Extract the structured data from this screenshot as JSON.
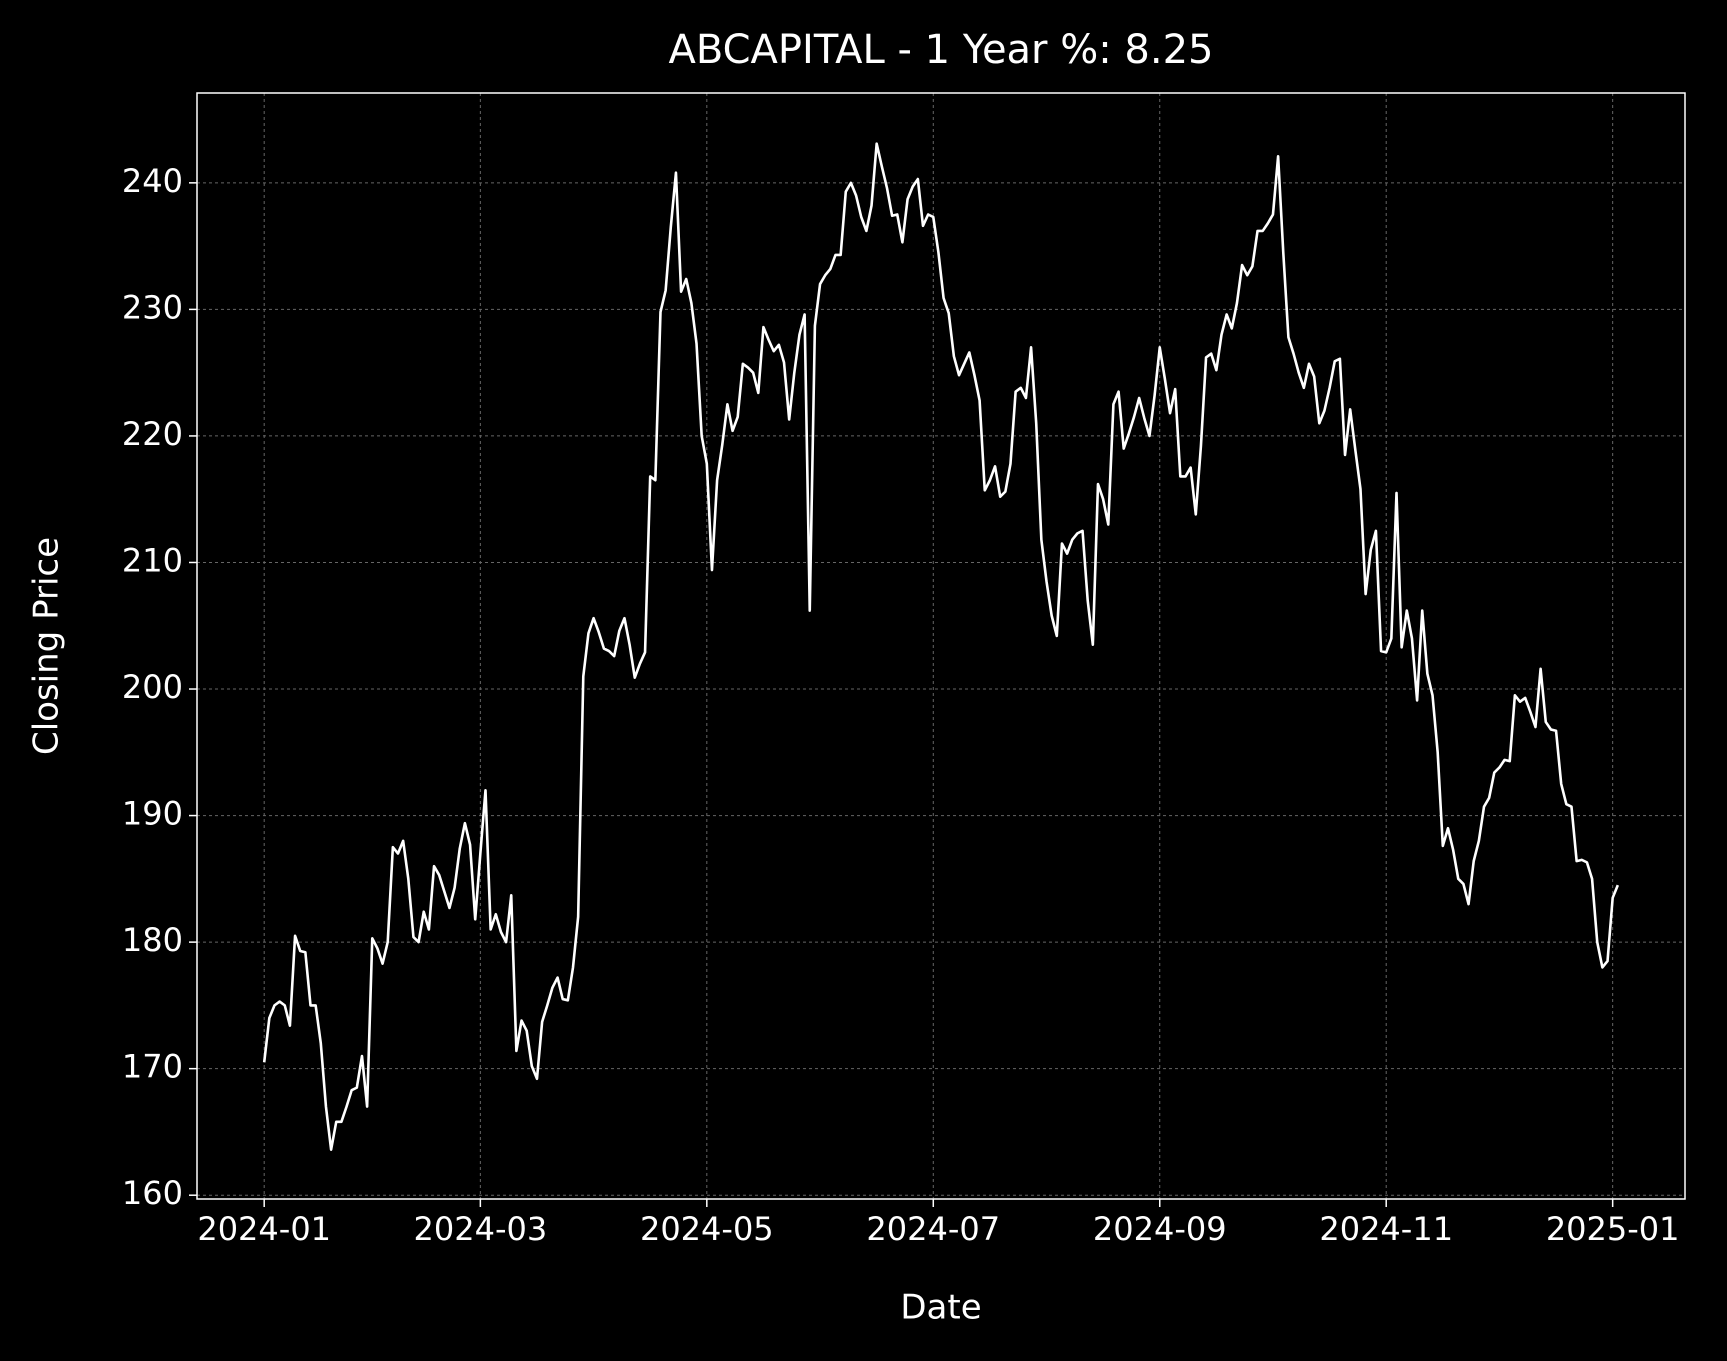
{
  "chart_data": {
    "type": "line",
    "title": "ABCAPITAL - 1 Year %: 8.25",
    "x_label": "Date",
    "y_label": "Closing Price",
    "background": "#000000",
    "grid": true,
    "categories": [
      "2024-01",
      null,
      null,
      null,
      null,
      null,
      null,
      null,
      null,
      null,
      null,
      null,
      null,
      null,
      null,
      null,
      null,
      null,
      null,
      null,
      null,
      null,
      null,
      null,
      null,
      null,
      null,
      null,
      null,
      null,
      null,
      null,
      null,
      null,
      null,
      null,
      null,
      null,
      null,
      null,
      null,
      null,
      "2024-03",
      null,
      null,
      null,
      null,
      null,
      null,
      null,
      null,
      null,
      null,
      null,
      null,
      null,
      null,
      null,
      null,
      null,
      null,
      null,
      null,
      null,
      null,
      null,
      null,
      null,
      null,
      null,
      null,
      null,
      null,
      null,
      null,
      null,
      null,
      null,
      null,
      null,
      null,
      null,
      null,
      null,
      null,
      null,
      "2024-05",
      null,
      null,
      null,
      null,
      null,
      null,
      null,
      null,
      null,
      null,
      null,
      null,
      null,
      null,
      null,
      null,
      null,
      null,
      null,
      null,
      null,
      null,
      null,
      null,
      null,
      null,
      null,
      null,
      null,
      null,
      null,
      null,
      null,
      null,
      null,
      null,
      null,
      null,
      null,
      null,
      null,
      null,
      null,
      "2024-07",
      null,
      null,
      null,
      null,
      null,
      null,
      null,
      null,
      null,
      null,
      null,
      null,
      null,
      null,
      null,
      null,
      null,
      null,
      null,
      null,
      null,
      null,
      null,
      null,
      null,
      null,
      null,
      null,
      null,
      null,
      null,
      null,
      null,
      null,
      null,
      null,
      null,
      null,
      null,
      null,
      null,
      null,
      null,
      "2024-09",
      null,
      null,
      null,
      null,
      null,
      null,
      null,
      null,
      null,
      null,
      null,
      null,
      null,
      null,
      null,
      null,
      null,
      null,
      null,
      null,
      null,
      null,
      null,
      null,
      null,
      null,
      null,
      null,
      null,
      null,
      null,
      null,
      null,
      null,
      null,
      null,
      null,
      null,
      null,
      null,
      null,
      null,
      null,
      "2024-11",
      null,
      null,
      null,
      null,
      null,
      null,
      null,
      null,
      null,
      null,
      null,
      null,
      null,
      null,
      null,
      null,
      null,
      null,
      null,
      null,
      null,
      null,
      null,
      null,
      null,
      null,
      null,
      null,
      null,
      null,
      null,
      null,
      null,
      null,
      null,
      null,
      null,
      null,
      null,
      null,
      null,
      null,
      null,
      "2025-01",
      null
    ],
    "series": [
      {
        "name": "Closing Price",
        "color": "#ffffff",
        "values": [
          170.5,
          174,
          175,
          175.3,
          175,
          173.4,
          180.5,
          179.3,
          179.2,
          175,
          175,
          172,
          167,
          163.6,
          165.8,
          165.8,
          167,
          168.3,
          168.5,
          171,
          167,
          180.3,
          179.5,
          178.3,
          180,
          187.5,
          187,
          188,
          185,
          180.4,
          180,
          182.4,
          181,
          186,
          185.3,
          184,
          182.7,
          184.3,
          187.4,
          189.4,
          187.7,
          181.8,
          187,
          192,
          181,
          182.2,
          180.8,
          180,
          183.7,
          171.4,
          173.8,
          173,
          170.2,
          169.2,
          173.7,
          175,
          176.4,
          177.2,
          175.5,
          175.4,
          178,
          182,
          201,
          204.4,
          205.6,
          204.5,
          203.2,
          203,
          202.6,
          204.6,
          205.6,
          203.5,
          200.9,
          202,
          202.9,
          216.8,
          216.5,
          229.8,
          231.5,
          236.5,
          240.8,
          231.4,
          232.4,
          230.5,
          227.3,
          220,
          217.8,
          209.4,
          216.5,
          219.3,
          222.5,
          220.4,
          221.5,
          225.7,
          225.4,
          225,
          223.4,
          228.6,
          227.6,
          226.7,
          227.2,
          225.8,
          221.3,
          225,
          228,
          229.6,
          206.2,
          228.7,
          232,
          232.7,
          233.2,
          234.3,
          234.3,
          239.3,
          240,
          239,
          237.3,
          236.2,
          238.2,
          243.1,
          241.3,
          239.6,
          237.4,
          237.5,
          235.3,
          238.7,
          239.7,
          240.3,
          236.6,
          237.5,
          237.3,
          234.5,
          230.9,
          229.7,
          226.3,
          224.8,
          225.7,
          226.6,
          224.8,
          222.8,
          215.7,
          216.5,
          217.6,
          215.2,
          215.6,
          217.8,
          223.5,
          223.8,
          223,
          227,
          221,
          211.8,
          208.5,
          205.8,
          204.2,
          211.5,
          210.7,
          211.8,
          212.3,
          212.5,
          207,
          203.5,
          216.2,
          215,
          213,
          222.5,
          223.5,
          219,
          220.2,
          221.5,
          223,
          221.4,
          220,
          223.2,
          227,
          224.5,
          221.8,
          223.7,
          216.8,
          216.8,
          217.5,
          213.8,
          219.2,
          226.2,
          226.5,
          225.2,
          228,
          229.6,
          228.5,
          230.5,
          233.5,
          232.7,
          233.4,
          236.2,
          236.2,
          236.8,
          237.5,
          242.1,
          234.5,
          227.8,
          226.5,
          225,
          223.8,
          225.7,
          224.7,
          221,
          222,
          223.8,
          225.9,
          226.1,
          218.5,
          222.1,
          218.9,
          215.8,
          207.5,
          211,
          212.5,
          203,
          202.9,
          204,
          215.5,
          203.3,
          206.2,
          204,
          199.1,
          206.2,
          201.2,
          199.5,
          195,
          187.6,
          189,
          187.3,
          185,
          184.6,
          183,
          186.4,
          188,
          190.7,
          191.4,
          193.4,
          193.8,
          194.4,
          194.3,
          199.5,
          199,
          199.3,
          198.2,
          197,
          201.6,
          197.4,
          196.8,
          196.7,
          192.5,
          190.9,
          190.7,
          186.4,
          186.5,
          186.3,
          185,
          180,
          178,
          178.5,
          183.5,
          184.5
        ]
      }
    ],
    "ylim": [
      159.7,
      247.1
    ],
    "yticks": [
      160,
      170,
      180,
      190,
      200,
      210,
      220,
      230,
      240
    ]
  }
}
